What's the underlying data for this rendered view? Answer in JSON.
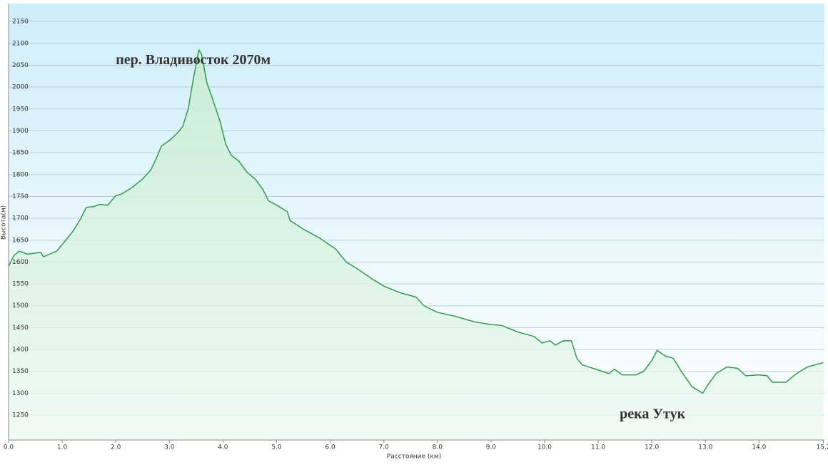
{
  "chart_data": {
    "type": "line",
    "x_label": "Расстояние (км)",
    "y_label": "Высота(м)",
    "annotations": [
      {
        "text": "пер. Владивосток 2070м",
        "x": 2.0,
        "y": 2060,
        "color": "#d42a2a"
      },
      {
        "text": "река Утук",
        "x": 11.4,
        "y": 1250,
        "color": "#d42a2a"
      }
    ],
    "xlim": [
      0,
      15.22
    ],
    "ylim": [
      1193,
      2191
    ],
    "xticks": [
      {
        "value": 0,
        "label": "0.0"
      },
      {
        "value": 1,
        "label": "1.0"
      },
      {
        "value": 2,
        "label": "2.0"
      },
      {
        "value": 3,
        "label": "3.0"
      },
      {
        "value": 4,
        "label": "4.0"
      },
      {
        "value": 5,
        "label": "5.0"
      },
      {
        "value": 6,
        "label": "6.0"
      },
      {
        "value": 7,
        "label": "7.0"
      },
      {
        "value": 8,
        "label": "8.0"
      },
      {
        "value": 9,
        "label": "9.0"
      },
      {
        "value": 10,
        "label": "10.0"
      },
      {
        "value": 11,
        "label": "11.0"
      },
      {
        "value": 12,
        "label": "12.0"
      },
      {
        "value": 13,
        "label": "13.0"
      },
      {
        "value": 14,
        "label": "14.0"
      },
      15.2
    ],
    "yticks": [
      1250,
      1300,
      1350,
      1400,
      1450,
      1500,
      1550,
      1600,
      1650,
      1700,
      1750,
      1800,
      1850,
      1900,
      1950,
      2000,
      2050,
      2100,
      2150
    ],
    "grid": true,
    "x": [
      0.0,
      0.1,
      0.2,
      0.35,
      0.6,
      0.65,
      0.9,
      1.0,
      1.2,
      1.35,
      1.45,
      1.6,
      1.7,
      1.85,
      2.0,
      2.1,
      2.3,
      2.5,
      2.65,
      2.75,
      2.85,
      3.0,
      3.15,
      3.25,
      3.35,
      3.45,
      3.55,
      3.6,
      3.7,
      3.8,
      3.95,
      4.05,
      4.15,
      4.3,
      4.45,
      4.6,
      4.75,
      4.85,
      5.0,
      5.2,
      5.25,
      5.5,
      5.8,
      6.1,
      6.2,
      6.3,
      6.5,
      6.8,
      7.0,
      7.3,
      7.6,
      7.75,
      8.0,
      8.3,
      8.5,
      8.7,
      9.0,
      9.2,
      9.5,
      9.8,
      9.95,
      10.1,
      10.2,
      10.35,
      10.5,
      10.6,
      10.7,
      11.0,
      11.2,
      11.3,
      11.45,
      11.7,
      11.85,
      12.0,
      12.1,
      12.25,
      12.4,
      12.55,
      12.75,
      12.95,
      13.05,
      13.2,
      13.4,
      13.6,
      13.75,
      14.0,
      14.15,
      14.25,
      14.5,
      14.7,
      14.9,
      15.2
    ],
    "series": [
      {
        "name": "Высота",
        "color": "#2e9e4a",
        "values": [
          1590,
          1615,
          1625,
          1618,
          1622,
          1612,
          1625,
          1640,
          1670,
          1700,
          1725,
          1727,
          1732,
          1730,
          1752,
          1755,
          1770,
          1790,
          1810,
          1835,
          1865,
          1878,
          1895,
          1910,
          1950,
          2020,
          2085,
          2075,
          2010,
          1975,
          1920,
          1870,
          1845,
          1830,
          1805,
          1790,
          1765,
          1740,
          1730,
          1715,
          1695,
          1675,
          1655,
          1630,
          1615,
          1600,
          1585,
          1560,
          1545,
          1530,
          1520,
          1500,
          1485,
          1477,
          1470,
          1463,
          1457,
          1455,
          1440,
          1430,
          1415,
          1420,
          1410,
          1420,
          1420,
          1380,
          1365,
          1353,
          1345,
          1355,
          1342,
          1342,
          1350,
          1375,
          1398,
          1385,
          1380,
          1350,
          1315,
          1300,
          1320,
          1345,
          1360,
          1357,
          1340,
          1342,
          1340,
          1325,
          1325,
          1345,
          1360,
          1370
        ]
      }
    ]
  }
}
